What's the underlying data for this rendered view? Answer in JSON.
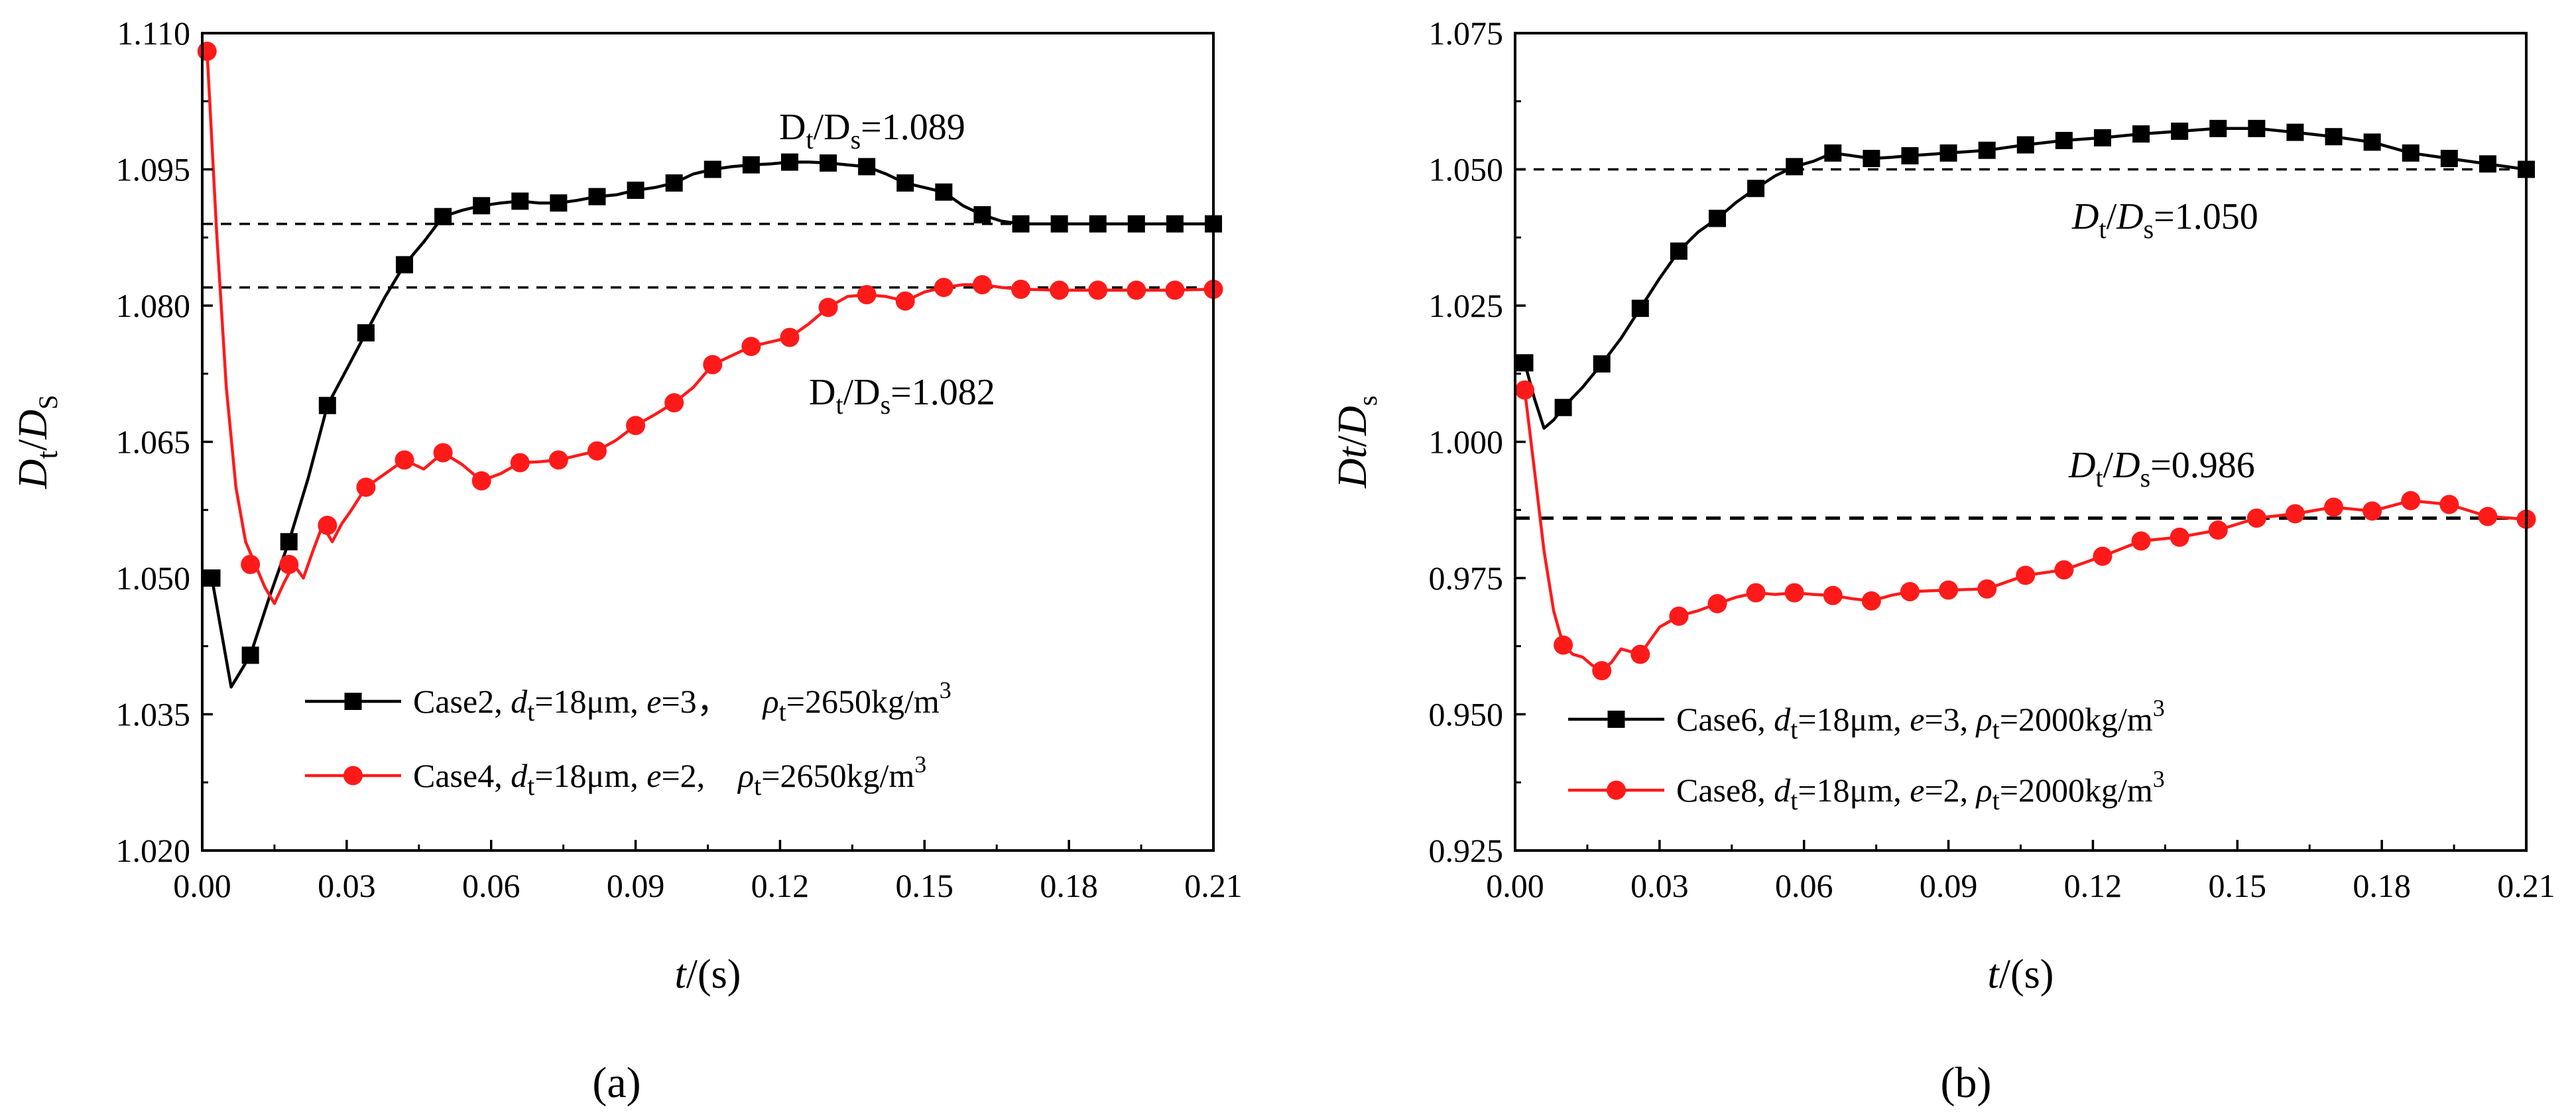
{
  "chart_data": [
    {
      "panel": "a",
      "type": "line",
      "caption": "(a)",
      "xlabel": {
        "italic": "t",
        "rest": "/(s)"
      },
      "ylabel": {
        "main": "D",
        "sub": "t",
        "mid": "/",
        "main2": "D",
        "sub2": "S"
      },
      "xlim": [
        0,
        0.21
      ],
      "ylim": [
        1.02,
        1.11
      ],
      "xticks": [
        "0.00",
        "0.03",
        "0.06",
        "0.09",
        "0.12",
        "0.15",
        "0.18",
        "0.21"
      ],
      "yticks": [
        "1.020",
        "1.035",
        "1.050",
        "1.065",
        "1.080",
        "1.095",
        "1.110"
      ],
      "reference_lines": [
        {
          "y": 1.089,
          "label": {
            "main": "D",
            "sub": "t",
            "mid": "/D",
            "sub2": "s",
            "tail": "=1.089"
          }
        },
        {
          "y": 1.082,
          "label": {
            "main": "D",
            "sub": "t",
            "mid": "/D",
            "sub2": "s",
            "tail": "=1.082"
          }
        }
      ],
      "series": [
        {
          "name": "Case2",
          "color": "#000000",
          "marker": "square",
          "legend": {
            "case": "Case2, ",
            "v1": "d",
            "v1sub": "t",
            "v1tail": "=18μm, ",
            "v2": "e",
            "v2tail": "=3，",
            "v3": "ρ",
            "v3sub": "t",
            "v3tail": "=2650kg/m",
            "sup": "3"
          },
          "x": [
            0.002,
            0.01,
            0.018,
            0.026,
            0.034,
            0.042,
            0.05,
            0.058,
            0.066,
            0.074,
            0.082,
            0.09,
            0.098,
            0.106,
            0.114,
            0.122,
            0.13,
            0.138,
            0.146,
            0.154,
            0.162,
            0.17,
            0.178,
            0.186,
            0.194,
            0.202,
            0.21
          ],
          "y": [
            1.05,
            1.0415,
            1.054,
            1.069,
            1.077,
            1.0845,
            1.0898,
            1.091,
            1.0915,
            1.0913,
            1.092,
            1.0927,
            1.0935,
            1.095,
            1.0955,
            1.0958,
            1.0957,
            1.0953,
            1.0935,
            1.0925,
            1.09,
            1.089,
            1.089,
            1.089,
            1.089,
            1.089,
            1.089
          ],
          "curve_x": [
            0.002,
            0.006,
            0.01,
            0.014,
            0.018,
            0.022,
            0.026,
            0.03,
            0.034,
            0.038,
            0.042,
            0.046,
            0.05,
            0.054,
            0.058,
            0.062,
            0.066,
            0.07,
            0.074,
            0.078,
            0.082,
            0.086,
            0.09,
            0.094,
            0.098,
            0.102,
            0.106,
            0.11,
            0.114,
            0.118,
            0.122,
            0.126,
            0.13,
            0.134,
            0.138,
            0.142,
            0.146,
            0.15,
            0.154,
            0.158,
            0.162,
            0.166,
            0.17,
            0.174,
            0.178,
            0.182,
            0.186,
            0.19,
            0.194,
            0.198,
            0.202,
            0.206,
            0.21
          ],
          "curve_y": [
            1.05,
            1.038,
            1.0415,
            1.048,
            1.054,
            1.061,
            1.069,
            1.073,
            1.077,
            1.081,
            1.0845,
            1.087,
            1.0898,
            1.0905,
            1.091,
            1.0913,
            1.0915,
            1.0913,
            1.0913,
            1.0916,
            1.092,
            1.0922,
            1.0927,
            1.093,
            1.0935,
            1.0945,
            1.095,
            1.0953,
            1.0955,
            1.0956,
            1.0958,
            1.0958,
            1.0957,
            1.0955,
            1.0953,
            1.0945,
            1.0935,
            1.093,
            1.0925,
            1.091,
            1.09,
            1.0893,
            1.089,
            1.089,
            1.089,
            1.089,
            1.089,
            1.089,
            1.089,
            1.089,
            1.089,
            1.089,
            1.089
          ]
        },
        {
          "name": "Case4",
          "color": "#ff1a1a",
          "marker": "circle",
          "legend": {
            "case": "Case4, ",
            "v1": "d",
            "v1sub": "t",
            "v1tail": "=18μm, ",
            "v2": "e",
            "v2tail": "=2,",
            "v3": "ρ",
            "v3sub": "t",
            "v3tail": "=2650kg/m",
            "sup": "3"
          },
          "x": [
            0.001,
            0.01,
            0.018,
            0.026,
            0.034,
            0.042,
            0.05,
            0.058,
            0.066,
            0.074,
            0.082,
            0.09,
            0.098,
            0.106,
            0.114,
            0.122,
            0.13,
            0.138,
            0.146,
            0.154,
            0.162,
            0.17,
            0.178,
            0.186,
            0.194,
            0.202,
            0.21
          ],
          "y": [
            1.108,
            1.0515,
            1.0515,
            1.0558,
            1.06,
            1.063,
            1.0638,
            1.0607,
            1.0627,
            1.063,
            1.064,
            1.0668,
            1.0693,
            1.0735,
            1.0755,
            1.0765,
            1.0798,
            1.0812,
            1.0805,
            1.082,
            1.0823,
            1.0818,
            1.0817,
            1.0817,
            1.0817,
            1.0817,
            1.0818
          ],
          "curve_x": [
            0.001,
            0.003,
            0.005,
            0.007,
            0.009,
            0.011,
            0.013,
            0.015,
            0.017,
            0.019,
            0.021,
            0.023,
            0.025,
            0.027,
            0.029,
            0.031,
            0.034,
            0.038,
            0.042,
            0.046,
            0.05,
            0.054,
            0.058,
            0.062,
            0.066,
            0.07,
            0.074,
            0.078,
            0.082,
            0.086,
            0.09,
            0.094,
            0.098,
            0.102,
            0.106,
            0.11,
            0.114,
            0.118,
            0.122,
            0.126,
            0.13,
            0.134,
            0.138,
            0.142,
            0.146,
            0.15,
            0.154,
            0.158,
            0.162,
            0.166,
            0.17,
            0.178,
            0.186,
            0.194,
            0.202,
            0.21
          ],
          "curve_y": [
            1.108,
            1.088,
            1.071,
            1.06,
            1.054,
            1.0515,
            1.049,
            1.0472,
            1.0495,
            1.0515,
            1.05,
            1.053,
            1.0558,
            1.054,
            1.056,
            1.0575,
            1.06,
            1.0615,
            1.063,
            1.062,
            1.0638,
            1.0625,
            1.0607,
            1.0615,
            1.0627,
            1.0628,
            1.063,
            1.0635,
            1.064,
            1.0652,
            1.0668,
            1.068,
            1.0693,
            1.071,
            1.0735,
            1.0745,
            1.0755,
            1.076,
            1.0765,
            1.078,
            1.0798,
            1.081,
            1.0812,
            1.081,
            1.0805,
            1.0815,
            1.082,
            1.0823,
            1.0823,
            1.082,
            1.0818,
            1.0817,
            1.0817,
            1.0817,
            1.0817,
            1.0818
          ]
        }
      ]
    },
    {
      "panel": "b",
      "type": "line",
      "caption": "(b)",
      "xlabel": {
        "italic": "t",
        "rest": "/(s)"
      },
      "ylabel": {
        "main": "Dt",
        "mid": "/",
        "main2": "D",
        "sub2": "s"
      },
      "xlim": [
        0,
        0.21
      ],
      "ylim": [
        0.925,
        1.075
      ],
      "xticks": [
        "0.00",
        "0.03",
        "0.06",
        "0.09",
        "0.12",
        "0.15",
        "0.18",
        "0.21"
      ],
      "yticks": [
        "0.925",
        "0.950",
        "0.975",
        "1.000",
        "1.025",
        "1.050",
        "1.075"
      ],
      "reference_lines": [
        {
          "y": 1.05,
          "label": {
            "main": "D",
            "sub": "t",
            "mid": "/D",
            "sub2": "s",
            "tail": "=1.050"
          }
        },
        {
          "y": 0.986,
          "label": {
            "main": "D",
            "sub": "t",
            "mid": "/D",
            "sub2": "s",
            "tail": "=0.986"
          }
        }
      ],
      "series": [
        {
          "name": "Case6",
          "color": "#000000",
          "marker": "square",
          "legend": {
            "case": "Case6, ",
            "v1": "d",
            "v1sub": "t",
            "v1tail": "=18μm, ",
            "v2": "e",
            "v2tail": "=3, ",
            "v3": "ρ",
            "v3sub": "t",
            "v3tail": "=2000kg/m",
            "sup": "3"
          },
          "x": [
            0.002,
            0.01,
            0.018,
            0.026,
            0.034,
            0.042,
            0.05,
            0.058,
            0.066,
            0.074,
            0.082,
            0.09,
            0.098,
            0.106,
            0.114,
            0.122,
            0.13,
            0.138,
            0.146,
            0.154,
            0.162,
            0.17,
            0.178,
            0.186,
            0.194,
            0.202,
            0.21
          ],
          "y": [
            1.0145,
            1.0063,
            1.0143,
            1.0245,
            1.035,
            1.041,
            1.0465,
            1.0505,
            1.053,
            1.052,
            1.0525,
            1.053,
            1.0535,
            1.0545,
            1.0553,
            1.0558,
            1.0565,
            1.057,
            1.0575,
            1.0575,
            1.0568,
            1.056,
            1.055,
            1.053,
            1.052,
            1.051,
            1.05
          ],
          "curve_x": [
            0.002,
            0.004,
            0.006,
            0.008,
            0.01,
            0.014,
            0.018,
            0.022,
            0.026,
            0.03,
            0.034,
            0.038,
            0.042,
            0.046,
            0.05,
            0.054,
            0.058,
            0.062,
            0.066,
            0.07,
            0.074,
            0.078,
            0.082,
            0.09,
            0.098,
            0.106,
            0.114,
            0.122,
            0.13,
            0.138,
            0.146,
            0.154,
            0.162,
            0.17,
            0.178,
            0.186,
            0.194,
            0.202,
            0.21
          ],
          "curve_y": [
            1.0145,
            1.008,
            1.0025,
            1.004,
            1.0063,
            1.01,
            1.0143,
            1.019,
            1.0245,
            1.03,
            1.035,
            1.0385,
            1.041,
            1.044,
            1.0465,
            1.0488,
            1.0505,
            1.0515,
            1.053,
            1.0525,
            1.052,
            1.0522,
            1.0525,
            1.053,
            1.0535,
            1.0545,
            1.0553,
            1.0558,
            1.0565,
            1.057,
            1.0575,
            1.0575,
            1.0568,
            1.056,
            1.055,
            1.053,
            1.052,
            1.051,
            1.05
          ]
        },
        {
          "name": "Case8",
          "color": "#ff1a1a",
          "marker": "circle",
          "legend": {
            "case": "Case8, ",
            "v1": "d",
            "v1sub": "t",
            "v1tail": "=18μm, ",
            "v2": "e",
            "v2tail": "=2, ",
            "v3": "ρ",
            "v3sub": "t",
            "v3tail": "=2000kg/m",
            "sup": "3"
          },
          "x": [
            0.002,
            0.01,
            0.018,
            0.026,
            0.034,
            0.042,
            0.05,
            0.058,
            0.066,
            0.074,
            0.082,
            0.09,
            0.098,
            0.106,
            0.114,
            0.122,
            0.13,
            0.138,
            0.146,
            0.154,
            0.162,
            0.17,
            0.178,
            0.186,
            0.194,
            0.202,
            0.21
          ],
          "y": [
            1.0095,
            0.9627,
            0.958,
            0.961,
            0.968,
            0.9703,
            0.9723,
            0.9723,
            0.9718,
            0.9708,
            0.9725,
            0.9728,
            0.973,
            0.9755,
            0.9765,
            0.979,
            0.9818,
            0.9825,
            0.9838,
            0.986,
            0.9868,
            0.988,
            0.9873,
            0.9892,
            0.9885,
            0.9863,
            0.9858
          ],
          "curve_x": [
            0.002,
            0.004,
            0.006,
            0.008,
            0.01,
            0.012,
            0.014,
            0.016,
            0.018,
            0.02,
            0.022,
            0.024,
            0.026,
            0.028,
            0.03,
            0.034,
            0.038,
            0.042,
            0.046,
            0.05,
            0.054,
            0.058,
            0.062,
            0.066,
            0.07,
            0.074,
            0.078,
            0.082,
            0.09,
            0.098,
            0.106,
            0.114,
            0.122,
            0.13,
            0.138,
            0.146,
            0.154,
            0.162,
            0.17,
            0.178,
            0.186,
            0.194,
            0.202,
            0.21
          ],
          "curve_y": [
            1.0095,
            0.995,
            0.98,
            0.969,
            0.9627,
            0.961,
            0.9605,
            0.959,
            0.958,
            0.9595,
            0.962,
            0.9615,
            0.961,
            0.9635,
            0.966,
            0.968,
            0.969,
            0.9703,
            0.9715,
            0.9723,
            0.972,
            0.9723,
            0.972,
            0.9718,
            0.9712,
            0.9708,
            0.9718,
            0.9725,
            0.9728,
            0.973,
            0.9755,
            0.9765,
            0.979,
            0.9818,
            0.9825,
            0.9838,
            0.986,
            0.9868,
            0.988,
            0.9873,
            0.9892,
            0.9885,
            0.9863,
            0.9858
          ]
        }
      ]
    }
  ]
}
